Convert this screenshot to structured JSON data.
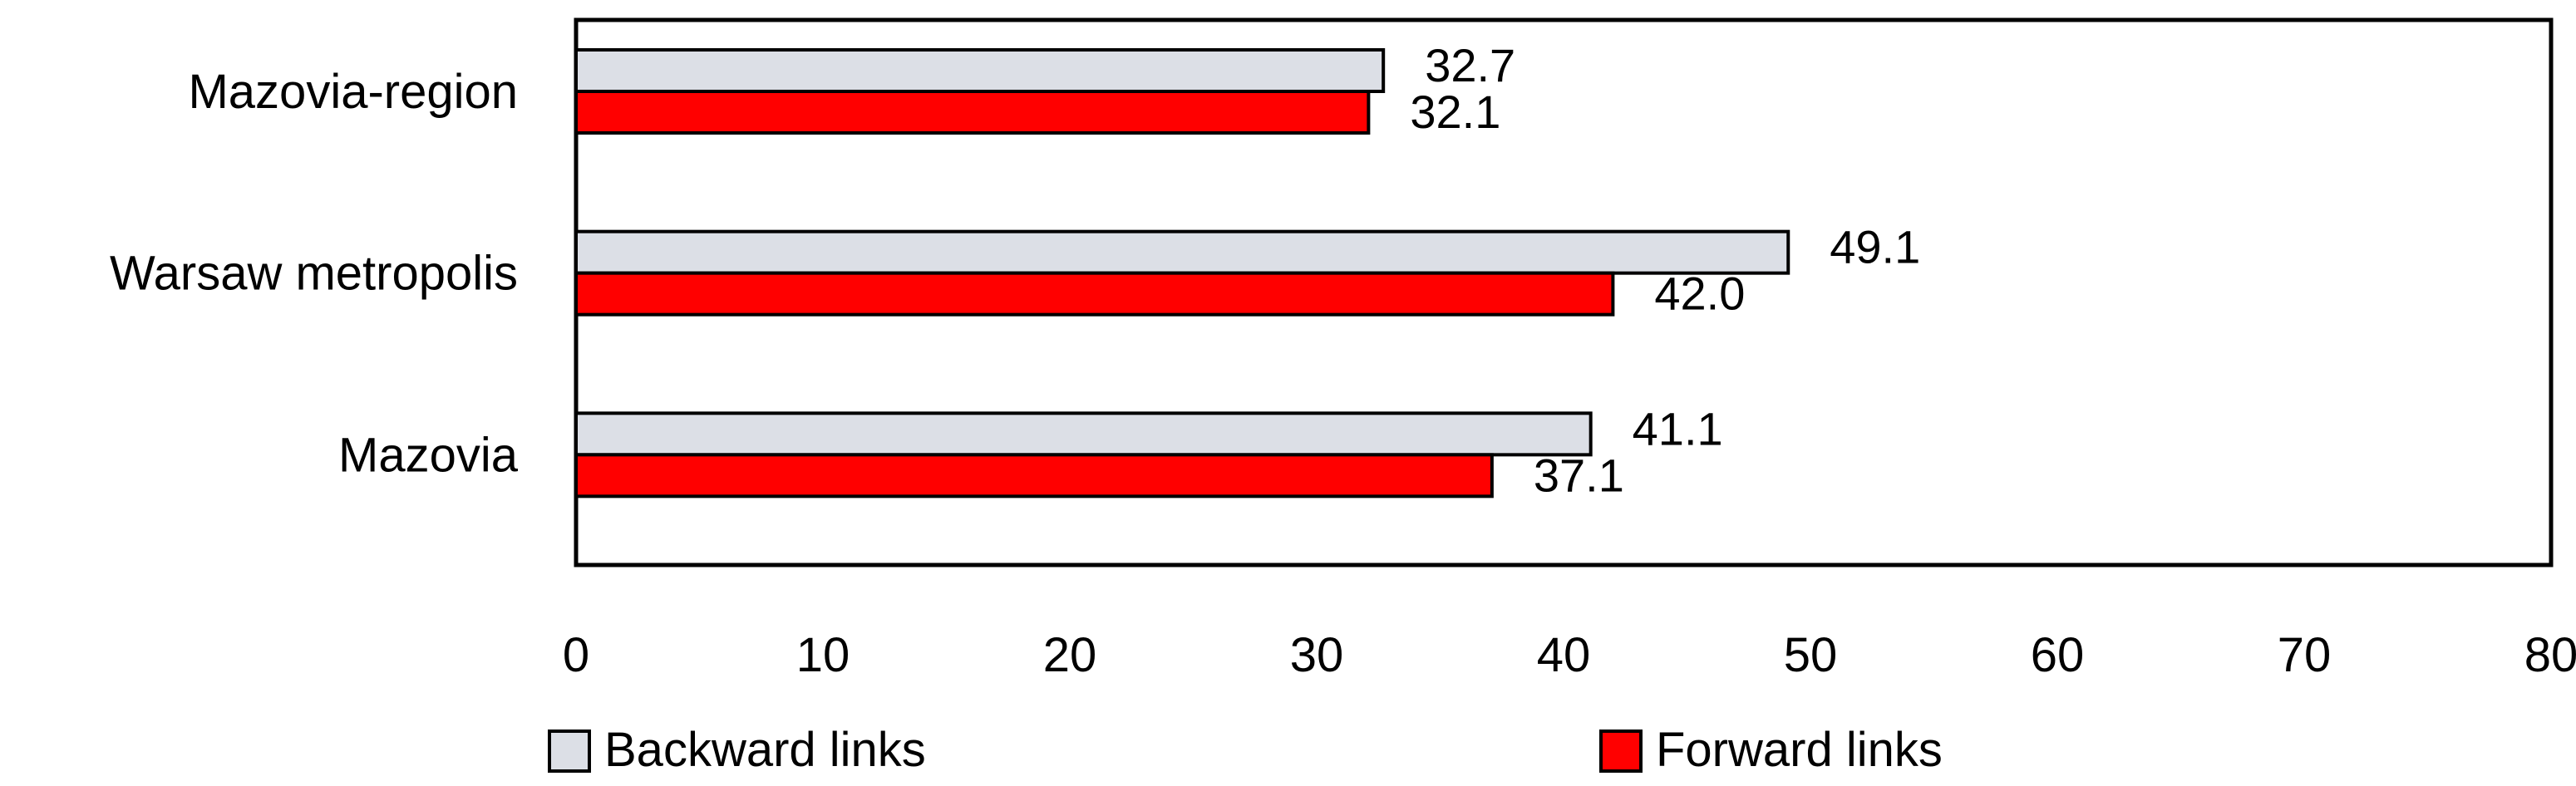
{
  "chart_data": {
    "type": "bar",
    "orientation": "horizontal",
    "title": "",
    "xlabel": "",
    "ylabel": "",
    "categories": [
      "Mazovia-region",
      "Warsaw metropolis",
      "Mazovia"
    ],
    "series": [
      {
        "name": "Backward links",
        "values": [
          32.7,
          49.1,
          41.1
        ],
        "labels": [
          "32.7",
          "49.1",
          "41.1"
        ],
        "color": "#dcdfe6"
      },
      {
        "name": "Forward links",
        "values": [
          32.1,
          42.0,
          37.1
        ],
        "labels": [
          "32.1",
          "42.0",
          "37.1"
        ],
        "color": "#ff0000"
      }
    ],
    "xlim": [
      0,
      80
    ],
    "xticks": [
      0,
      10,
      20,
      30,
      40,
      50,
      60,
      70,
      80
    ],
    "grid": false,
    "legend": {
      "position": "bottom"
    },
    "bar_outline_color": "#000000"
  }
}
